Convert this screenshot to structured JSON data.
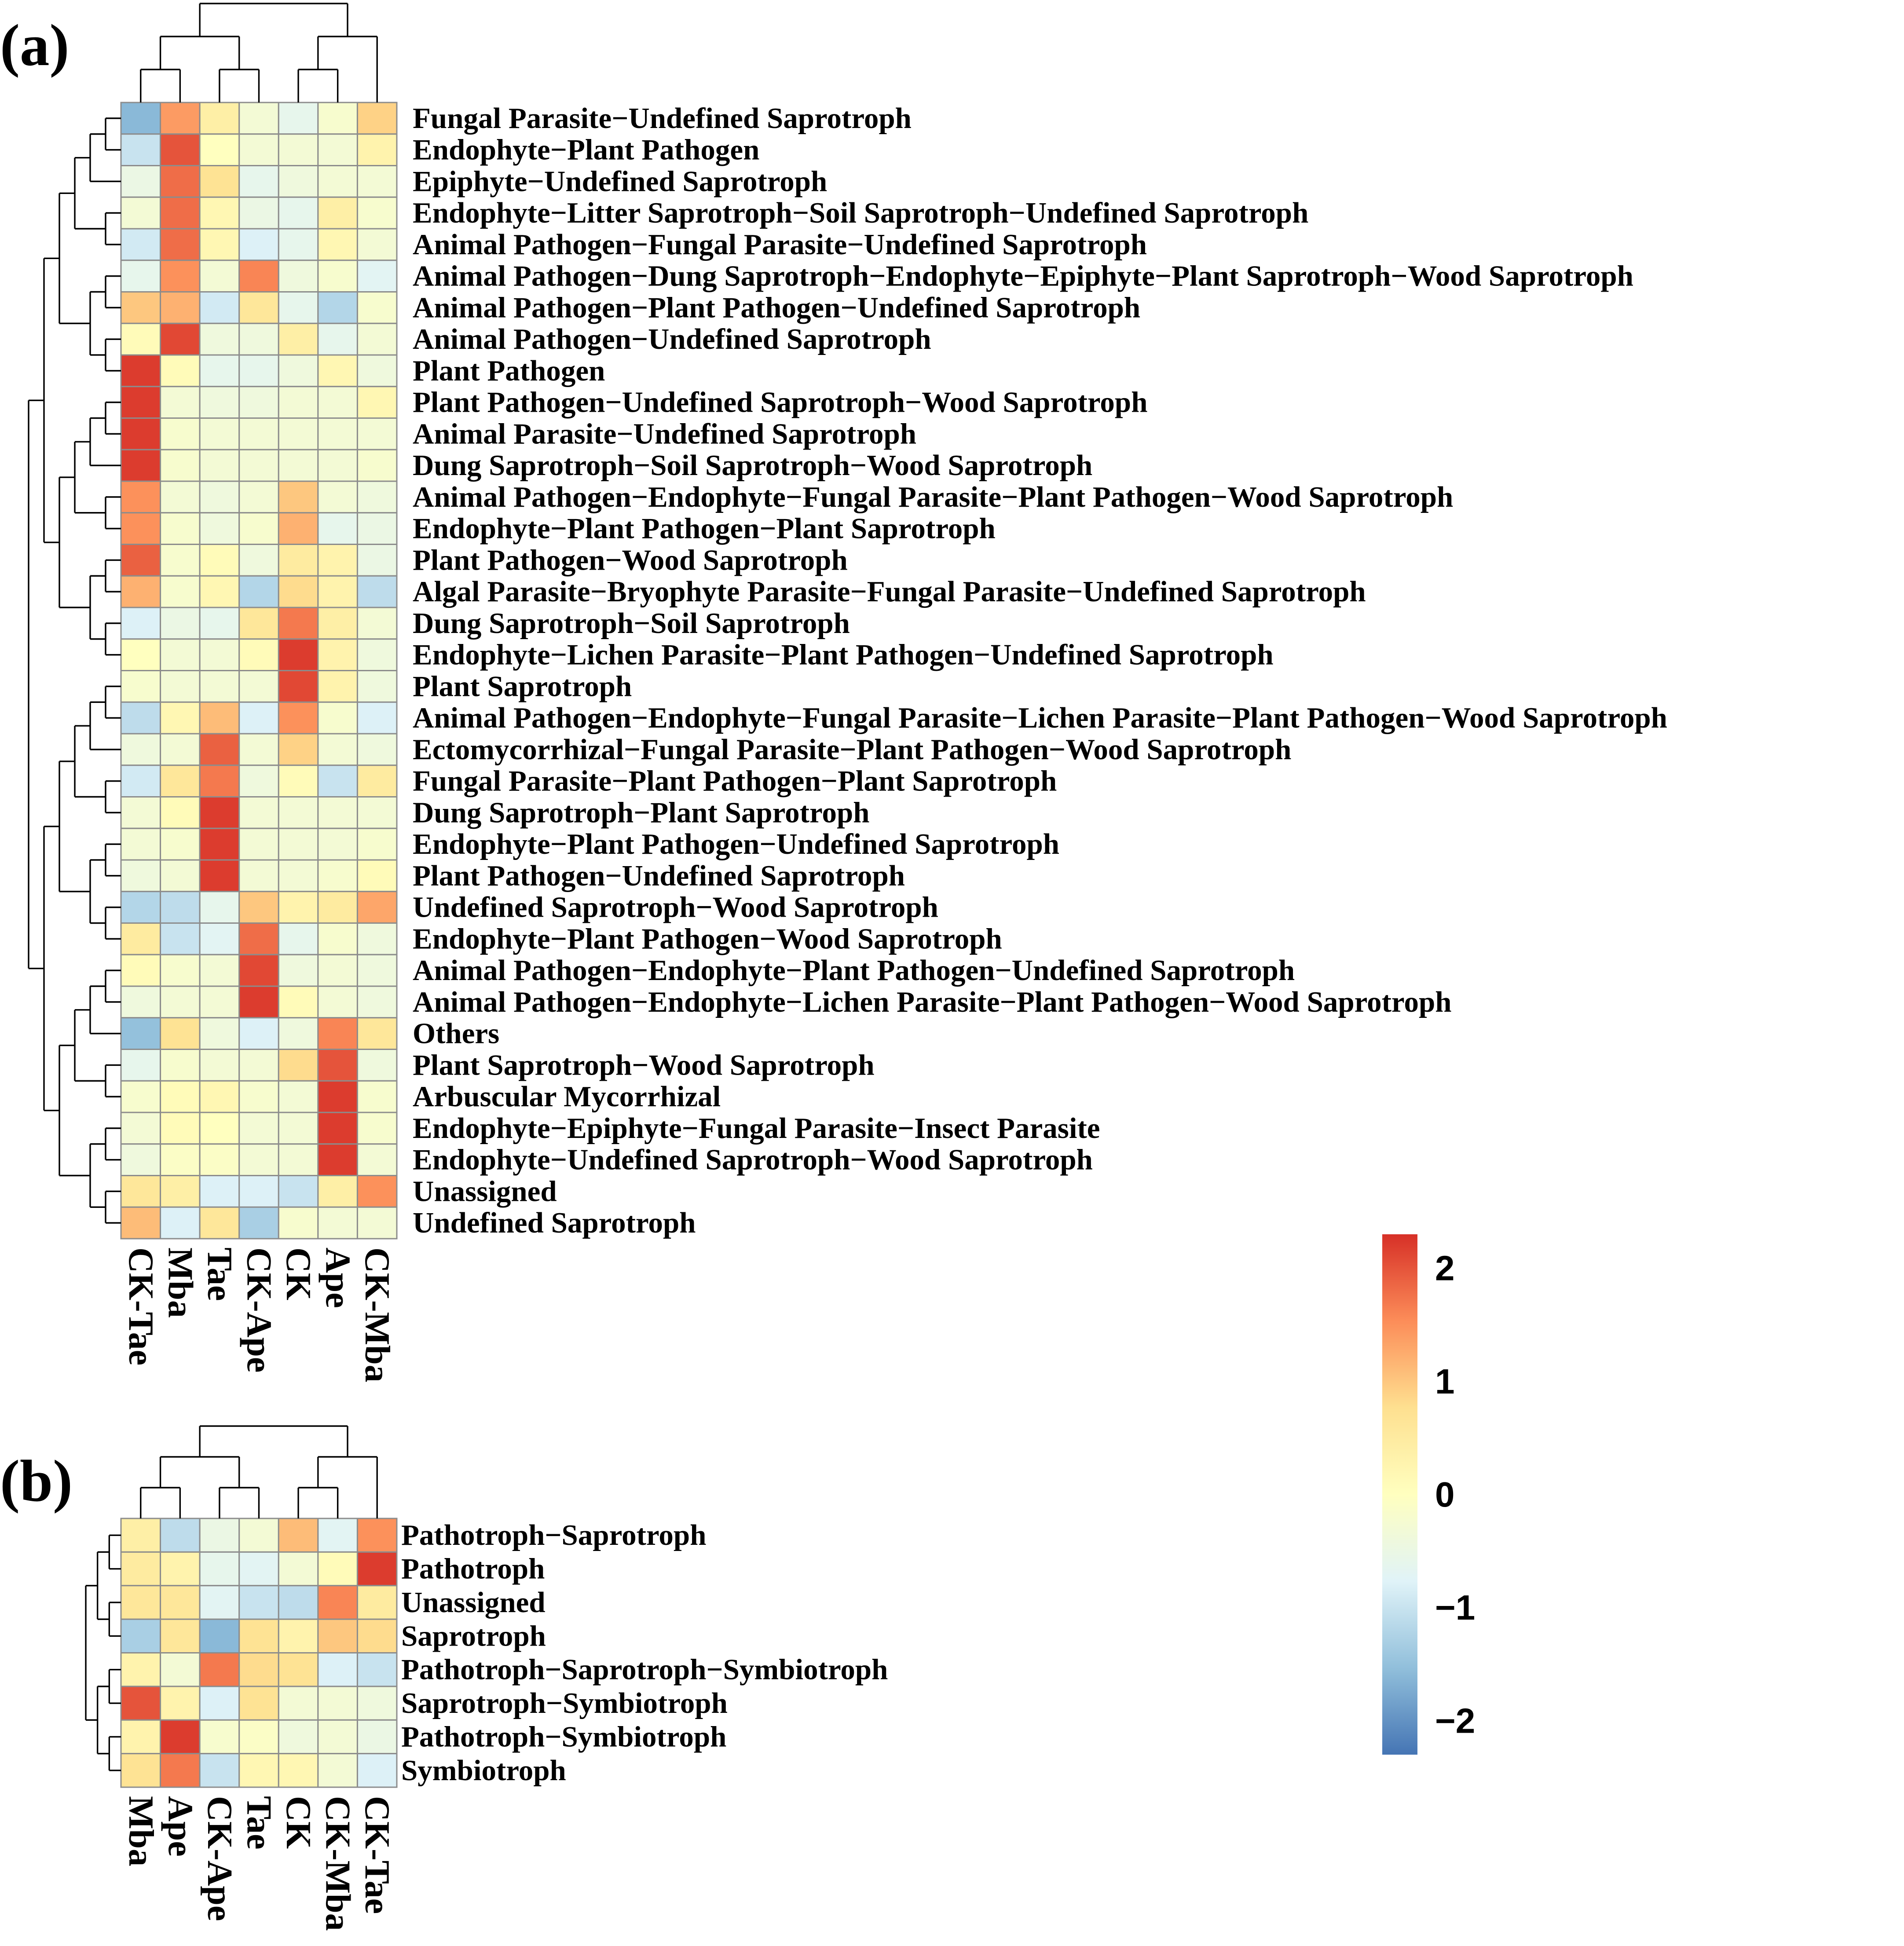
{
  "chart_data": [
    {
      "type": "heatmap",
      "panel": "(a)",
      "columns": [
        "CK-Tae",
        "Mba",
        "Tae",
        "CK-Ape",
        "CK",
        "Ape",
        "CK-Mba"
      ],
      "rows": [
        "Fungal Parasite−Undefined Saprotroph",
        "Endophyte−Plant Pathogen",
        "Epiphyte−Undefined Saprotroph",
        "Endophyte−Litter Saprotroph−Soil Saprotroph−Undefined Saprotroph",
        "Animal Pathogen−Fungal Parasite−Undefined Saprotroph",
        "Animal Pathogen−Dung Saprotroph−Endophyte−Epiphyte−Plant Saprotroph−Wood Saprotroph",
        "Animal Pathogen−Plant Pathogen−Undefined Saprotroph",
        "Animal Pathogen−Undefined Saprotroph",
        "Plant Pathogen",
        "Plant Pathogen−Undefined Saprotroph−Wood Saprotroph",
        "Animal Parasite−Undefined Saprotroph",
        "Dung Saprotroph−Soil Saprotroph−Wood Saprotroph",
        "Animal Pathogen−Endophyte−Fungal Parasite−Plant Pathogen−Wood Saprotroph",
        "Endophyte−Plant Pathogen−Plant Saprotroph",
        "Plant Pathogen−Wood Saprotroph",
        "Algal Parasite−Bryophyte Parasite−Fungal Parasite−Undefined Saprotroph",
        "Dung Saprotroph−Soil Saprotroph",
        "Endophyte−Lichen Parasite−Plant Pathogen−Undefined Saprotroph",
        "Plant Saprotroph",
        "Animal Pathogen−Endophyte−Fungal Parasite−Lichen Parasite−Plant Pathogen−Wood Saprotroph",
        "Ectomycorrhizal−Fungal Parasite−Plant Pathogen−Wood Saprotroph",
        "Fungal Parasite−Plant Pathogen−Plant Saprotroph",
        "Dung Saprotroph−Plant Saprotroph",
        "Endophyte−Plant Pathogen−Undefined Saprotroph",
        "Plant Pathogen−Undefined Saprotroph",
        "Undefined Saprotroph−Wood Saprotroph",
        "Endophyte−Plant Pathogen−Wood Saprotroph",
        "Animal Pathogen−Endophyte−Plant Pathogen−Undefined Saprotroph",
        "Animal Pathogen−Endophyte−Lichen Parasite−Plant Pathogen−Wood Saprotroph",
        "Others",
        "Plant Saprotroph−Wood Saprotroph",
        "Arbuscular Mycorrhizal",
        "Endophyte−Epiphyte−Fungal Parasite−Insect Parasite",
        "Endophyte−Undefined Saprotroph−Wood Saprotroph",
        "Unassigned",
        "Undefined Saprotroph"
      ],
      "values": [
        [
          -1.6,
          1.4,
          0.4,
          -0.3,
          -0.6,
          -0.2,
          0.9
        ],
        [
          -1.0,
          2.0,
          0.0,
          -0.3,
          -0.3,
          -0.3,
          0.3
        ],
        [
          -0.5,
          1.8,
          0.7,
          -0.6,
          -0.4,
          -0.3,
          -0.3
        ],
        [
          -0.3,
          1.8,
          0.2,
          -0.5,
          -0.6,
          0.4,
          -0.2
        ],
        [
          -0.9,
          1.8,
          0.2,
          -0.8,
          -0.6,
          0.2,
          -0.3
        ],
        [
          -0.6,
          1.5,
          -0.3,
          1.6,
          -0.4,
          -0.2,
          -0.7
        ],
        [
          1.0,
          1.2,
          -0.9,
          0.6,
          -0.6,
          -1.2,
          -0.2
        ],
        [
          0.1,
          2.1,
          -0.4,
          -0.4,
          0.4,
          -0.6,
          -0.3
        ],
        [
          2.2,
          0.1,
          -0.6,
          -0.6,
          -0.4,
          0.2,
          -0.4
        ],
        [
          2.2,
          -0.3,
          -0.4,
          -0.4,
          -0.3,
          -0.3,
          0.2
        ],
        [
          2.2,
          -0.2,
          -0.3,
          -0.3,
          -0.3,
          -0.3,
          -0.3
        ],
        [
          2.2,
          -0.2,
          -0.3,
          -0.3,
          -0.3,
          -0.3,
          -0.2
        ],
        [
          1.5,
          -0.3,
          -0.4,
          -0.3,
          1.0,
          -0.3,
          -0.4
        ],
        [
          1.5,
          -0.2,
          -0.4,
          -0.2,
          1.2,
          -0.6,
          -0.5
        ],
        [
          1.9,
          -0.2,
          0.1,
          -0.4,
          0.5,
          0.3,
          -0.5
        ],
        [
          1.2,
          -0.2,
          0.2,
          -1.2,
          0.8,
          0.3,
          -1.1
        ],
        [
          -0.8,
          -0.5,
          -0.6,
          0.6,
          1.7,
          0.4,
          -0.3
        ],
        [
          0.0,
          -0.3,
          -0.3,
          0.1,
          2.2,
          0.3,
          -0.4
        ],
        [
          -0.2,
          -0.3,
          -0.3,
          -0.3,
          2.1,
          0.3,
          -0.4
        ],
        [
          -1.1,
          0.2,
          1.1,
          -0.8,
          1.5,
          -0.2,
          -0.8
        ],
        [
          -0.4,
          -0.3,
          1.9,
          -0.3,
          0.9,
          -0.3,
          -0.4
        ],
        [
          -0.9,
          0.6,
          1.7,
          -0.4,
          0.1,
          -1.0,
          0.5
        ],
        [
          -0.3,
          0.1,
          2.2,
          -0.3,
          -0.3,
          -0.3,
          -0.3
        ],
        [
          -0.3,
          -0.2,
          2.2,
          -0.3,
          -0.3,
          -0.3,
          -0.2
        ],
        [
          -0.4,
          -0.3,
          2.2,
          -0.3,
          -0.3,
          -0.2,
          0.1
        ],
        [
          -1.2,
          -1.1,
          -0.6,
          1.0,
          0.3,
          0.5,
          1.3
        ],
        [
          0.5,
          -1.0,
          -0.7,
          1.8,
          -0.6,
          -0.2,
          -0.4
        ],
        [
          0.1,
          -0.2,
          -0.3,
          2.1,
          -0.4,
          -0.3,
          -0.4
        ],
        [
          -0.4,
          -0.3,
          -0.3,
          2.2,
          0.1,
          -0.3,
          -0.4
        ],
        [
          -1.5,
          0.7,
          -0.4,
          -0.8,
          -0.4,
          1.6,
          0.6
        ],
        [
          -0.6,
          -0.2,
          -0.3,
          -0.3,
          0.8,
          2.0,
          -0.4
        ],
        [
          -0.2,
          0.1,
          0.2,
          -0.2,
          -0.3,
          2.2,
          -0.2
        ],
        [
          -0.3,
          0.1,
          0.0,
          -0.3,
          -0.3,
          2.2,
          -0.2
        ],
        [
          -0.4,
          -0.1,
          -0.1,
          -0.3,
          -0.3,
          2.2,
          -0.3
        ],
        [
          0.6,
          0.4,
          -0.8,
          -0.8,
          -1.0,
          0.4,
          1.5
        ],
        [
          1.1,
          -0.8,
          0.6,
          -1.3,
          -0.2,
          -0.3,
          -0.3
        ]
      ],
      "scale_range": [
        -2.3,
        2.3
      ]
    },
    {
      "type": "heatmap",
      "panel": "(b)",
      "columns": [
        "Mba",
        "Ape",
        "CK-Ape",
        "Tae",
        "CK",
        "CK-Mba",
        "CK-Tae"
      ],
      "rows": [
        "Pathotroph−Saprotroph",
        "Pathotroph",
        "Unassigned",
        "Saprotroph",
        "Pathotroph−Saprotroph−Symbiotroph",
        "Saprotroph−Symbiotroph",
        "Pathotroph−Symbiotroph",
        "Symbiotroph"
      ],
      "values": [
        [
          0.4,
          -1.1,
          -0.5,
          -0.3,
          1.1,
          -0.7,
          1.5
        ],
        [
          0.5,
          0.3,
          -0.6,
          -0.7,
          -0.3,
          0.1,
          2.2
        ],
        [
          0.6,
          0.6,
          -0.7,
          -1.0,
          -1.1,
          1.6,
          0.5
        ],
        [
          -1.3,
          0.6,
          -1.6,
          0.7,
          0.3,
          1.0,
          0.8
        ],
        [
          0.3,
          -0.3,
          1.7,
          0.8,
          0.7,
          -0.8,
          -1.0
        ],
        [
          2.0,
          0.3,
          -0.8,
          0.7,
          -0.3,
          -0.3,
          -0.4
        ],
        [
          0.3,
          2.2,
          -0.2,
          -0.1,
          -0.4,
          -0.3,
          -0.5
        ],
        [
          0.7,
          1.7,
          -1.0,
          0.2,
          0.2,
          -0.3,
          -0.8
        ]
      ],
      "scale_range": [
        -2.3,
        2.3
      ]
    }
  ],
  "panel_labels": {
    "a": "(a)",
    "b": "(b)"
  },
  "legend": {
    "ticks": [
      {
        "value": 2,
        "label": "2"
      },
      {
        "value": 1,
        "label": "1"
      },
      {
        "value": 0,
        "label": "0"
      },
      {
        "value": -1,
        "label": "−1"
      },
      {
        "value": -2,
        "label": "−2"
      }
    ],
    "range": [
      -2.3,
      2.3
    ],
    "colors": [
      "#4575b4",
      "#91bfdb",
      "#e0f3f8",
      "#ffffbf",
      "#fee090",
      "#fc8d59",
      "#d73027"
    ]
  }
}
